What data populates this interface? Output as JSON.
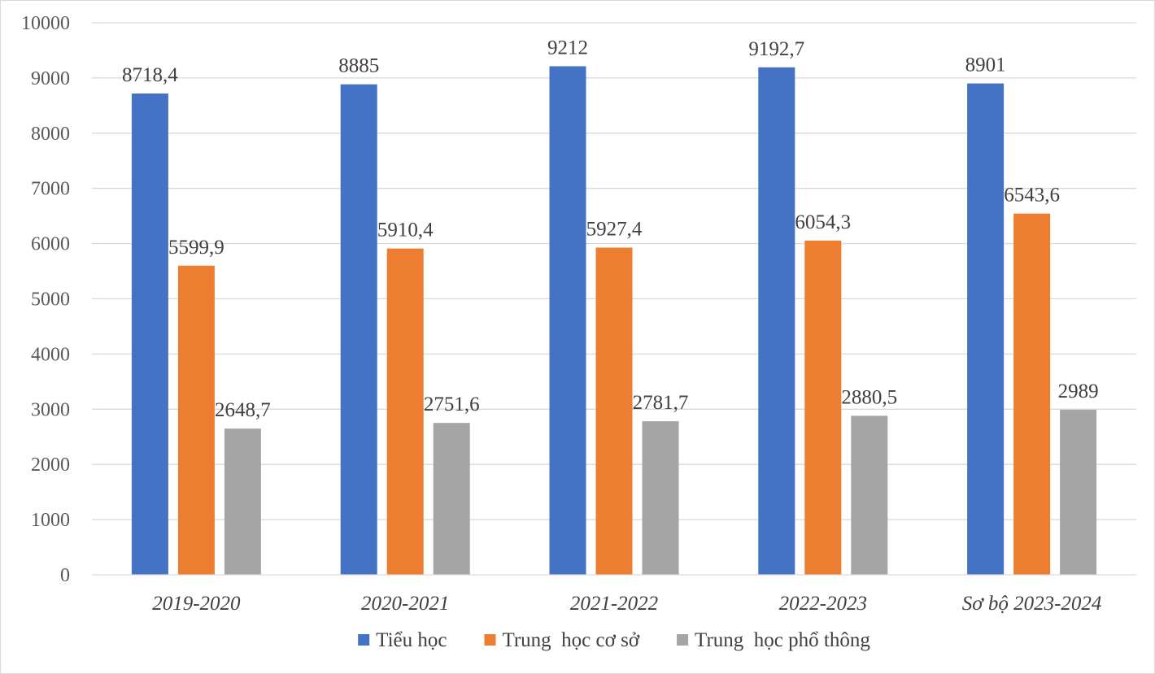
{
  "chart_data": {
    "type": "bar",
    "categories": [
      "2019-2020",
      "2020-2021",
      "2021-2022",
      "2022-2023",
      "Sơ bộ 2023-2024"
    ],
    "series": [
      {
        "name": "Tiểu học",
        "color": "#4472C4",
        "values": [
          8718.4,
          8885,
          9212,
          9192.7,
          8901
        ],
        "labels": [
          "8718,4",
          "8885",
          "9212",
          "9192,7",
          "8901"
        ]
      },
      {
        "name": "Trung  học cơ sở",
        "color": "#ED7D31",
        "values": [
          5599.9,
          5910.4,
          5927.4,
          6054.3,
          6543.6
        ],
        "labels": [
          "5599,9",
          "5910,4",
          "5927,4",
          "6054,3",
          "6543,6"
        ]
      },
      {
        "name": "Trung  học phổ thông",
        "color": "#A5A5A5",
        "values": [
          2648.7,
          2751.6,
          2781.7,
          2880.5,
          2989
        ],
        "labels": [
          "2648,7",
          "2751,6",
          "2781,7",
          "2880,5",
          "2989"
        ]
      }
    ],
    "ylim": [
      0,
      10000
    ],
    "yticks": [
      0,
      1000,
      2000,
      3000,
      4000,
      5000,
      6000,
      7000,
      8000,
      9000,
      10000
    ],
    "ytick_labels": [
      "0",
      "1000",
      "2000",
      "3000",
      "4000",
      "5000",
      "6000",
      "7000",
      "8000",
      "9000",
      "10000"
    ],
    "title": "",
    "xlabel": "",
    "ylabel": "",
    "grid": true,
    "legend_position": "bottom"
  }
}
